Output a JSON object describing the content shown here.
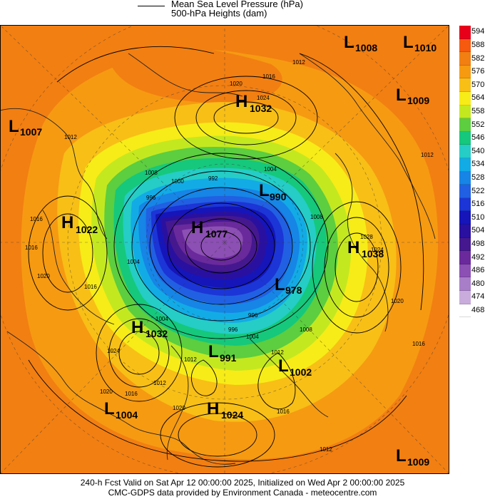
{
  "legend": {
    "mslp_label": "Mean Sea Level Pressure (hPa)",
    "heights_label": "500-hPa Heights (dam)"
  },
  "colorbar": {
    "ticks": [
      "594",
      "588",
      "582",
      "576",
      "570",
      "564",
      "558",
      "552",
      "546",
      "540",
      "534",
      "528",
      "522",
      "516",
      "510",
      "504",
      "498",
      "492",
      "486",
      "480",
      "474",
      "468"
    ],
    "colors": [
      "#e8001a",
      "#f55a0f",
      "#f27f12",
      "#f69a12",
      "#f8bf16",
      "#f7ec17",
      "#c4e820",
      "#5cce3f",
      "#15c87c",
      "#25cdc6",
      "#12abe6",
      "#1685e6",
      "#2160e2",
      "#1c35d6",
      "#1515ba",
      "#2a10a0",
      "#451890",
      "#6a2a9c",
      "#8c4fb4",
      "#a97ec8",
      "#c9acdc",
      "#ffffff"
    ]
  },
  "systems": [
    {
      "type": "L",
      "value": "1008"
    },
    {
      "type": "L",
      "value": "1010"
    },
    {
      "type": "H",
      "value": "1032"
    },
    {
      "type": "L",
      "value": "1009"
    },
    {
      "type": "L",
      "value": "1007"
    },
    {
      "type": "H",
      "value": "1022"
    },
    {
      "type": "H",
      "value": "1038"
    },
    {
      "type": "L",
      "value": "990"
    },
    {
      "type": "H",
      "value": "1077"
    },
    {
      "type": "L",
      "value": "978"
    },
    {
      "type": "H",
      "value": "1032"
    },
    {
      "type": "L",
      "value": "991"
    },
    {
      "type": "L",
      "value": "1002"
    },
    {
      "type": "L",
      "value": "1004"
    },
    {
      "type": "H",
      "value": "1024"
    },
    {
      "type": "L",
      "value": "1009"
    }
  ],
  "isobar_labels": [
    "1016",
    "1012",
    "1020",
    "1024",
    "1012",
    "1008",
    "1004",
    "1000",
    "996",
    "992",
    "1004",
    "996",
    "1012",
    "1016",
    "1020",
    "1016",
    "1028",
    "1024",
    "1020",
    "1016",
    "1012",
    "1004",
    "1008",
    "996",
    "1004",
    "1008",
    "1012",
    "1020",
    "1016",
    "1024",
    "1012",
    "1016",
    "1020",
    "1016",
    "1012"
  ],
  "footer": {
    "line1": "240-h Fcst Valid on Sat Apr 12 00:00:00 2025, Initialized on Wed Apr  2 00:00:00 2025",
    "line2": "CMC-GDPS data provided by Environment Canada - meteocentre.com"
  }
}
